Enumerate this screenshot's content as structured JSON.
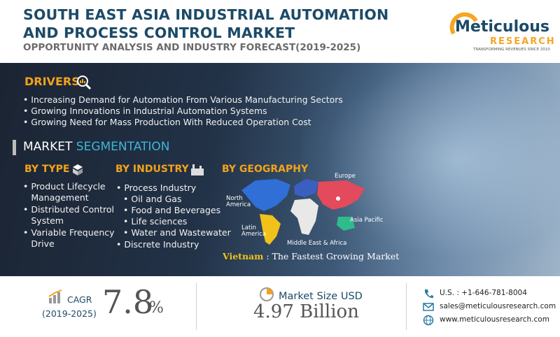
{
  "header": {
    "title_line1": "SOUTH EAST ASIA INDUSTRIAL AUTOMATION",
    "title_line2": "AND PROCESS CONTROL MARKET",
    "subtitle": "OPPORTUNITY ANALYSIS AND INDUSTRY FORECAST(2019-2025)"
  },
  "logo": {
    "name": "Meticulous",
    "sub": "RESEARCH",
    "tagline": "TRANSFORMING REVENUES SINCE 2010"
  },
  "drivers": {
    "heading": "DRIVERS",
    "items": [
      "Increasing Demand for Automation From Various Manufacturing Sectors",
      "Growing Innovations in Industrial Automation Systems",
      "Growing Need for Mass Production With Reduced Operation Cost"
    ]
  },
  "segmentation": {
    "heading_part1": "MARKET",
    "heading_part2": "SEGMENTATION",
    "by_type": {
      "heading": "BY TYPE",
      "items": [
        "Product Lifecycle Management",
        "Distributed Control System",
        "Variable Frequency Drive"
      ]
    },
    "by_industry": {
      "heading": "BY INDUSTRY",
      "items": [
        "Process Industry",
        "Oil and Gas",
        "Food and Beverages",
        "Life sciences",
        "Water and Wastewater",
        "Discrete Industry"
      ]
    },
    "by_geography": {
      "heading": "BY GEOGRAPHY",
      "regions": [
        "Europe",
        "North America",
        "Asia Pacific",
        "Latin America",
        "Middle East & Africa"
      ]
    }
  },
  "highlight": {
    "country": "Vietnam",
    "text": " : The Fastest Growing Market"
  },
  "metrics": {
    "cagr_label": "CAGR",
    "cagr_period": "(2019-2025)",
    "cagr_value": "7.8",
    "cagr_unit": "%",
    "market_size_label": "Market Size USD",
    "market_size_value": "4.97 Billion"
  },
  "contact": {
    "phone": "U.S. : +1-646-781-8004",
    "email": "sales@meticulousresearch.com",
    "website": "www.meticulousresearch.com"
  }
}
